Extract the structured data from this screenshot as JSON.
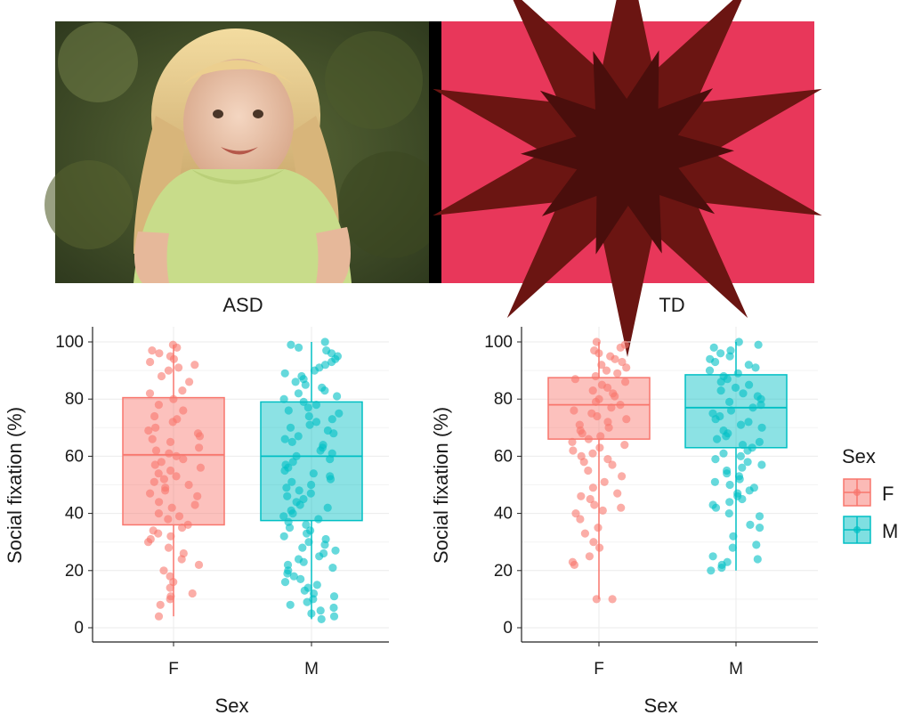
{
  "stimulus": {
    "left_image": "child-face-video-frame",
    "right_image": "geometric-star-pattern"
  },
  "legend": {
    "title": "Sex",
    "items": [
      {
        "label": "F",
        "color": "#F8766D"
      },
      {
        "label": "M",
        "color": "#00BFC4"
      }
    ]
  },
  "chart_data": [
    {
      "type": "box-jitter",
      "title": "ASD",
      "xlabel": "Sex",
      "ylabel": "Social fixation (%)",
      "ylim": [
        0,
        100
      ],
      "yticks": [
        0,
        20,
        40,
        60,
        80,
        100
      ],
      "categories": [
        "F",
        "M"
      ],
      "boxes": [
        {
          "category": "F",
          "q1": 36,
          "median": 60.5,
          "q3": 80.5,
          "whisker_low": 4,
          "whisker_high": 99,
          "points": [
            99,
            98,
            97,
            96,
            95,
            94,
            93,
            92,
            91,
            90,
            88,
            86,
            83,
            82,
            80,
            78,
            76,
            74,
            73,
            72,
            70,
            69,
            68,
            67,
            66,
            65,
            63,
            62,
            61,
            60,
            59,
            58,
            57,
            56,
            55,
            54,
            53,
            52,
            51,
            50,
            49,
            48,
            47,
            46,
            44,
            43,
            42,
            40,
            39,
            38,
            36,
            35,
            34,
            33,
            32,
            31,
            30,
            28,
            26,
            24,
            22,
            20,
            18,
            16,
            14,
            12,
            11,
            10,
            8,
            4
          ]
        },
        {
          "category": "M",
          "q1": 37.5,
          "median": 60,
          "q3": 79,
          "whisker_low": 3,
          "whisker_high": 100,
          "points": [
            100,
            99,
            98,
            97,
            96,
            95,
            94,
            93,
            92,
            91,
            90,
            89,
            88,
            87,
            86,
            85,
            84,
            83,
            82,
            81,
            80,
            79,
            78,
            77,
            76,
            75,
            74,
            73,
            72,
            71,
            70,
            69,
            68,
            67,
            66,
            65,
            64,
            63,
            62,
            61,
            60,
            59,
            58,
            57,
            56,
            55,
            54,
            53,
            52,
            51,
            50,
            49,
            48,
            47,
            46,
            45,
            44,
            43,
            42,
            41,
            40,
            39,
            38,
            37,
            36,
            35,
            34,
            33,
            32,
            31,
            30,
            29,
            28,
            27,
            26,
            25,
            24,
            23,
            22,
            21,
            20,
            19,
            18,
            17,
            16,
            15,
            14,
            13,
            12,
            11,
            10,
            9,
            8,
            7,
            6,
            5,
            4,
            3
          ]
        }
      ]
    },
    {
      "type": "box-jitter",
      "title": "TD",
      "xlabel": "Sex",
      "ylabel": "Social fixation (%)",
      "ylim": [
        0,
        100
      ],
      "yticks": [
        0,
        20,
        40,
        60,
        80,
        100
      ],
      "categories": [
        "F",
        "M"
      ],
      "boxes": [
        {
          "category": "F",
          "q1": 66,
          "median": 78,
          "q3": 87.5,
          "whisker_low": 10,
          "whisker_high": 100,
          "points": [
            100,
            99,
            98,
            97,
            96,
            95,
            94,
            93,
            92,
            91,
            90,
            89,
            88,
            87,
            86,
            85,
            84,
            83,
            82,
            81,
            80,
            79,
            78,
            77,
            76,
            75,
            74,
            73,
            72,
            71,
            70,
            69,
            68,
            67,
            66,
            65,
            64,
            63,
            62,
            61,
            60,
            59,
            58,
            57,
            55,
            53,
            51,
            49,
            47,
            46,
            45,
            43,
            42,
            41,
            40,
            38,
            35,
            33,
            30,
            28,
            25,
            23,
            22,
            10,
            10
          ]
        },
        {
          "category": "M",
          "q1": 63,
          "median": 77,
          "q3": 88.5,
          "whisker_low": 20,
          "whisker_high": 100,
          "points": [
            100,
            99,
            98,
            97,
            96,
            95,
            94,
            93,
            92,
            91,
            90,
            89,
            88,
            87,
            86,
            85,
            84,
            83,
            82,
            81,
            80,
            79,
            78,
            77,
            76,
            75,
            74,
            73,
            72,
            71,
            70,
            69,
            68,
            67,
            66,
            65,
            64,
            63,
            62,
            61,
            60,
            59,
            58,
            57,
            56,
            55,
            54,
            53,
            52,
            51,
            50,
            49,
            48,
            47,
            46,
            45,
            44,
            43,
            42,
            40,
            39,
            36,
            35,
            32,
            29,
            28,
            25,
            24,
            23,
            22,
            21,
            20
          ]
        }
      ]
    }
  ]
}
